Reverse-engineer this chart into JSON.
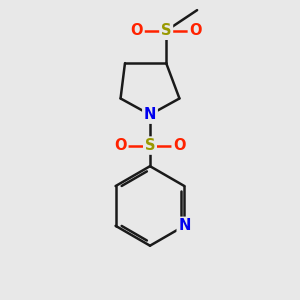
{
  "bg_color": "#e8e8e8",
  "bond_color": "#1a1a1a",
  "bond_width": 1.8,
  "atom_colors": {
    "S": "#999900",
    "O": "#ff2200",
    "N": "#0000ee",
    "C": "#1a1a1a"
  },
  "font_size_atom": 10.5,
  "figsize": [
    3.0,
    3.0
  ],
  "dpi": 100
}
